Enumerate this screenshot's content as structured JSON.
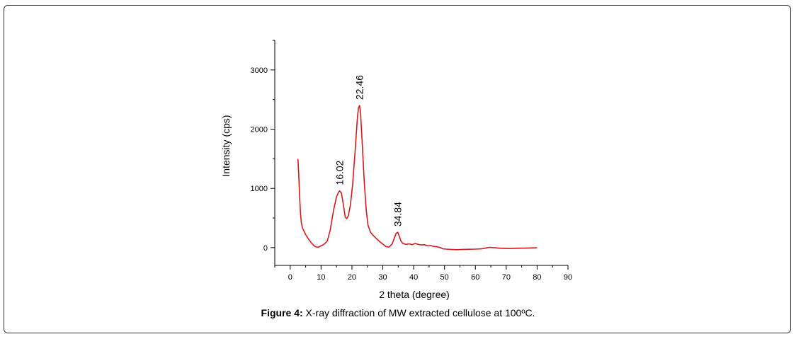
{
  "caption": {
    "prefix": "Figure 4:",
    "text": " X-ray diffraction of MW extracted cellulose at 100ºC."
  },
  "chart_data": {
    "type": "line",
    "xlabel": "2 theta (degree)",
    "ylabel": "Intensity (cps)",
    "xlim": [
      -5,
      90
    ],
    "ylim": [
      -300,
      3500
    ],
    "x_ticks": [
      0,
      10,
      20,
      30,
      40,
      50,
      60,
      70,
      80,
      90
    ],
    "y_ticks": [
      0,
      1000,
      2000,
      3000
    ],
    "line_color": "#d7191c",
    "annotations": [
      {
        "x": 16.02,
        "y": 960,
        "text": "16.02"
      },
      {
        "x": 22.46,
        "y": 2400,
        "text": "22.46"
      },
      {
        "x": 34.84,
        "y": 260,
        "text": "34.84"
      }
    ],
    "series": [
      {
        "color": "#d7191c",
        "points": [
          [
            2.5,
            1500
          ],
          [
            2.8,
            1200
          ],
          [
            3.0,
            900
          ],
          [
            3.3,
            600
          ],
          [
            3.6,
            420
          ],
          [
            4.0,
            330
          ],
          [
            5.0,
            220
          ],
          [
            6.0,
            140
          ],
          [
            7.0,
            70
          ],
          [
            8.0,
            20
          ],
          [
            9.0,
            5
          ],
          [
            10.0,
            30
          ],
          [
            11.0,
            60
          ],
          [
            12.0,
            110
          ],
          [
            13.0,
            300
          ],
          [
            14.0,
            620
          ],
          [
            15.0,
            860
          ],
          [
            15.6,
            930
          ],
          [
            16.02,
            960
          ],
          [
            16.6,
            920
          ],
          [
            17.2,
            740
          ],
          [
            17.8,
            520
          ],
          [
            18.3,
            490
          ],
          [
            18.8,
            530
          ],
          [
            19.5,
            720
          ],
          [
            20.2,
            1050
          ],
          [
            21.0,
            1600
          ],
          [
            21.7,
            2150
          ],
          [
            22.1,
            2360
          ],
          [
            22.46,
            2400
          ],
          [
            22.8,
            2280
          ],
          [
            23.3,
            1800
          ],
          [
            24.0,
            1100
          ],
          [
            24.6,
            650
          ],
          [
            25.2,
            380
          ],
          [
            26.0,
            260
          ],
          [
            27.0,
            200
          ],
          [
            28.0,
            150
          ],
          [
            29.0,
            100
          ],
          [
            30.0,
            60
          ],
          [
            31.0,
            20
          ],
          [
            32.0,
            10
          ],
          [
            33.0,
            60
          ],
          [
            33.8,
            170
          ],
          [
            34.3,
            240
          ],
          [
            34.84,
            260
          ],
          [
            35.3,
            200
          ],
          [
            35.9,
            110
          ],
          [
            36.5,
            70
          ],
          [
            37.5,
            55
          ],
          [
            38.5,
            65
          ],
          [
            39.5,
            50
          ],
          [
            40.5,
            70
          ],
          [
            41.5,
            55
          ],
          [
            42.5,
            45
          ],
          [
            43.5,
            50
          ],
          [
            44.5,
            30
          ],
          [
            45.5,
            35
          ],
          [
            46.5,
            20
          ],
          [
            47.5,
            15
          ],
          [
            48.5,
            5
          ],
          [
            49.5,
            -20
          ],
          [
            50.5,
            -25
          ],
          [
            52.0,
            -30
          ],
          [
            54.0,
            -35
          ],
          [
            56.0,
            -30
          ],
          [
            58.0,
            -28
          ],
          [
            60.0,
            -25
          ],
          [
            62.0,
            -20
          ],
          [
            63.5,
            -5
          ],
          [
            64.5,
            5
          ],
          [
            66.0,
            0
          ],
          [
            68.0,
            -10
          ],
          [
            70.0,
            -15
          ],
          [
            72.0,
            -15
          ],
          [
            74.0,
            -10
          ],
          [
            76.0,
            -8
          ],
          [
            78.0,
            -5
          ],
          [
            80.0,
            0
          ]
        ]
      }
    ]
  }
}
